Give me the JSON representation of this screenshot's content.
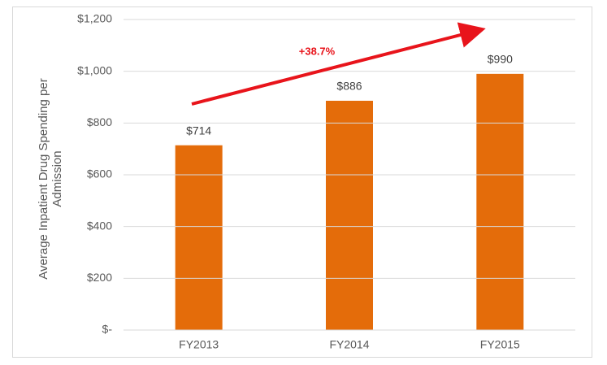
{
  "chart_data": {
    "type": "bar",
    "y_label": "Average Inpatient Drug Spending per Admission",
    "annotation": "+38.7%",
    "categories": [
      "FY2013",
      "FY2014",
      "FY2015"
    ],
    "values": [
      714,
      886,
      990
    ],
    "value_labels": [
      "$714",
      "$886",
      "$990"
    ],
    "color": "#e46c0a",
    "ylim": [
      0,
      1200
    ],
    "yticks": [
      {
        "value": 0,
        "label": "$-"
      },
      {
        "value": 200,
        "label": "$200"
      },
      {
        "value": 400,
        "label": "$400"
      },
      {
        "value": 600,
        "label": "$600"
      },
      {
        "value": 800,
        "label": "$800"
      },
      {
        "value": 1000,
        "label": "$1,000"
      },
      {
        "value": 1200,
        "label": "$1,200"
      }
    ],
    "grid": true
  }
}
